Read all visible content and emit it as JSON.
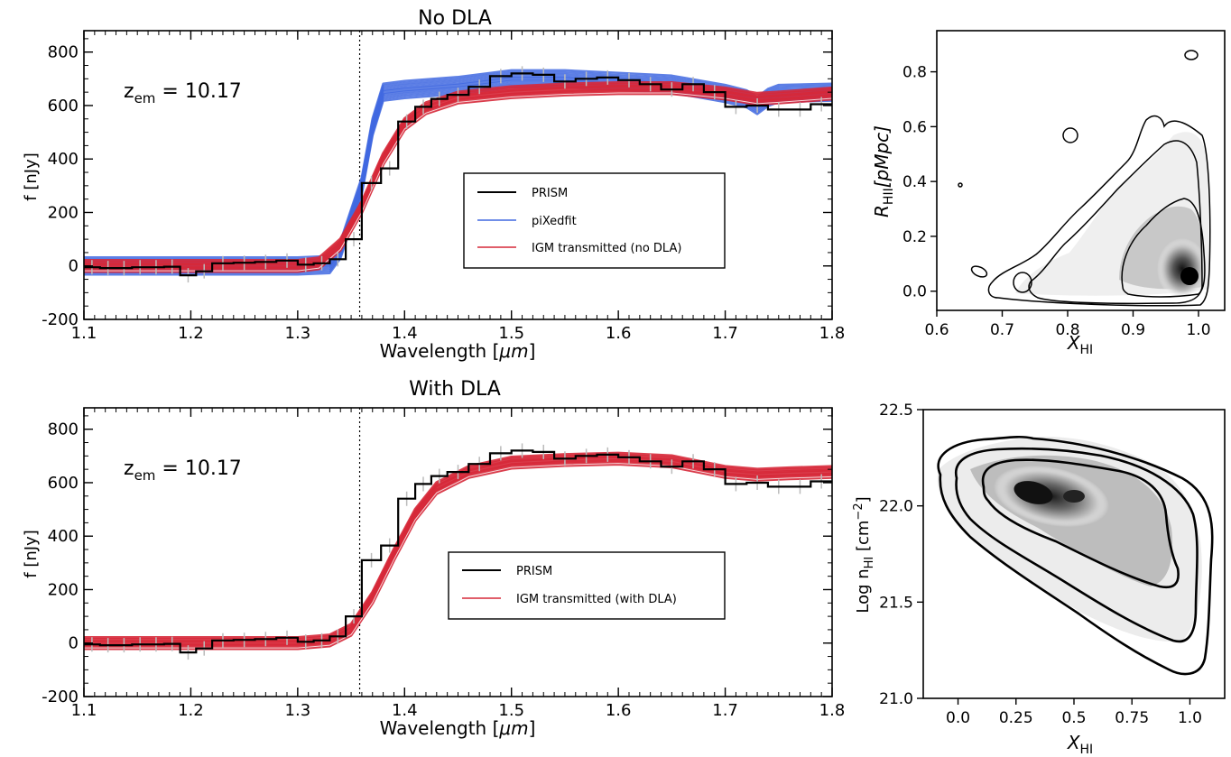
{
  "chart_data": [
    {
      "type": "line",
      "title": "No DLA",
      "annotation": {
        "text": "z",
        "sub": "em",
        "rest": " = 10.17"
      },
      "xlabel": "Wavelength [",
      "xlabel_unit": "μm",
      "xlabel_end": "]",
      "ylabel": "f [nJy]",
      "xlim": [
        1.1,
        1.8
      ],
      "ylim": [
        -200,
        880
      ],
      "xticks": [
        1.1,
        1.2,
        1.3,
        1.4,
        1.5,
        1.6,
        1.7,
        1.8
      ],
      "xtick_labels": [
        "1.1",
        "1.2",
        "1.3",
        "1.4",
        "1.5",
        "1.6",
        "1.7",
        "1.8"
      ],
      "yticks": [
        -200,
        0,
        200,
        400,
        600,
        800
      ],
      "ytick_labels": [
        "-200",
        "0",
        "200",
        "400",
        "600",
        "800"
      ],
      "vline_x": 1.358,
      "legend": [
        "PRISM",
        "piXedfit",
        "IGM transmitted (no DLA)"
      ],
      "colors": {
        "prism": "#000000",
        "model": "#4169e1",
        "igm": "#d62839"
      },
      "prism_steps": [
        [
          1.1,
          -5
        ],
        [
          1.115,
          -8
        ],
        [
          1.13,
          -8
        ],
        [
          1.145,
          -5
        ],
        [
          1.16,
          -5
        ],
        [
          1.175,
          -3
        ],
        [
          1.19,
          -35
        ],
        [
          1.205,
          -20
        ],
        [
          1.22,
          10
        ],
        [
          1.24,
          12
        ],
        [
          1.26,
          15
        ],
        [
          1.28,
          20
        ],
        [
          1.3,
          5
        ],
        [
          1.315,
          10
        ],
        [
          1.33,
          25
        ],
        [
          1.345,
          100
        ],
        [
          1.36,
          310
        ],
        [
          1.378,
          365
        ],
        [
          1.394,
          540
        ],
        [
          1.41,
          595
        ],
        [
          1.425,
          625
        ],
        [
          1.44,
          640
        ],
        [
          1.46,
          670
        ],
        [
          1.48,
          710
        ],
        [
          1.5,
          720
        ],
        [
          1.52,
          715
        ],
        [
          1.54,
          690
        ],
        [
          1.56,
          700
        ],
        [
          1.58,
          705
        ],
        [
          1.6,
          695
        ],
        [
          1.62,
          680
        ],
        [
          1.64,
          660
        ],
        [
          1.66,
          680
        ],
        [
          1.68,
          650
        ],
        [
          1.7,
          595
        ],
        [
          1.72,
          600
        ],
        [
          1.74,
          585
        ],
        [
          1.76,
          585
        ],
        [
          1.78,
          605
        ],
        [
          1.8,
          605
        ]
      ],
      "model_curve": [
        [
          1.1,
          0
        ],
        [
          1.3,
          0
        ],
        [
          1.33,
          5
        ],
        [
          1.34,
          60
        ],
        [
          1.36,
          300
        ],
        [
          1.37,
          520
        ],
        [
          1.38,
          650
        ],
        [
          1.4,
          660
        ],
        [
          1.45,
          675
        ],
        [
          1.5,
          700
        ],
        [
          1.55,
          700
        ],
        [
          1.6,
          690
        ],
        [
          1.65,
          680
        ],
        [
          1.7,
          645
        ],
        [
          1.72,
          625
        ],
        [
          1.73,
          600
        ],
        [
          1.74,
          630
        ],
        [
          1.75,
          645
        ],
        [
          1.8,
          650
        ]
      ],
      "igm_curve": [
        [
          1.1,
          0
        ],
        [
          1.3,
          0
        ],
        [
          1.32,
          10
        ],
        [
          1.34,
          80
        ],
        [
          1.36,
          220
        ],
        [
          1.38,
          400
        ],
        [
          1.4,
          530
        ],
        [
          1.42,
          590
        ],
        [
          1.45,
          630
        ],
        [
          1.5,
          650
        ],
        [
          1.55,
          660
        ],
        [
          1.6,
          665
        ],
        [
          1.65,
          665
        ],
        [
          1.7,
          645
        ],
        [
          1.73,
          625
        ],
        [
          1.75,
          630
        ],
        [
          1.8,
          645
        ]
      ]
    },
    {
      "type": "contour",
      "xlabel_main": "X",
      "xlabel_sub": "HI",
      "ylabel_main": "R",
      "ylabel_sub": "HII",
      "ylabel_rest": "[pMpc]",
      "xlim": [
        0.6,
        1.04
      ],
      "ylim": [
        -0.07,
        0.95
      ],
      "xticks": [
        0.6,
        0.7,
        0.8,
        0.9,
        1.0
      ],
      "xtick_labels": [
        "0.6",
        "0.7",
        "0.8",
        "0.9",
        "1.0"
      ],
      "yticks": [
        0.0,
        0.2,
        0.4,
        0.6,
        0.8
      ],
      "ytick_labels": [
        "0.0",
        "0.2",
        "0.4",
        "0.6",
        "0.8"
      ]
    },
    {
      "type": "line",
      "title": "With DLA",
      "annotation": {
        "text": "z",
        "sub": "em",
        "rest": " = 10.17"
      },
      "xlabel": "Wavelength [",
      "xlabel_unit": "μm",
      "xlabel_end": "]",
      "ylabel": "f [nJy]",
      "xlim": [
        1.1,
        1.8
      ],
      "ylim": [
        -200,
        880
      ],
      "xticks": [
        1.1,
        1.2,
        1.3,
        1.4,
        1.5,
        1.6,
        1.7,
        1.8
      ],
      "xtick_labels": [
        "1.1",
        "1.2",
        "1.3",
        "1.4",
        "1.5",
        "1.6",
        "1.7",
        "1.8"
      ],
      "yticks": [
        -200,
        0,
        200,
        400,
        600,
        800
      ],
      "ytick_labels": [
        "-200",
        "0",
        "200",
        "400",
        "600",
        "800"
      ],
      "vline_x": 1.358,
      "legend": [
        "PRISM",
        "IGM transmitted (with DLA)"
      ],
      "colors": {
        "prism": "#000000",
        "igm": "#d62839"
      },
      "prism_steps": [
        [
          1.1,
          -5
        ],
        [
          1.115,
          -8
        ],
        [
          1.13,
          -8
        ],
        [
          1.145,
          -5
        ],
        [
          1.16,
          -5
        ],
        [
          1.175,
          -3
        ],
        [
          1.19,
          -35
        ],
        [
          1.205,
          -20
        ],
        [
          1.22,
          10
        ],
        [
          1.24,
          12
        ],
        [
          1.26,
          15
        ],
        [
          1.28,
          20
        ],
        [
          1.3,
          5
        ],
        [
          1.315,
          10
        ],
        [
          1.33,
          25
        ],
        [
          1.345,
          100
        ],
        [
          1.36,
          310
        ],
        [
          1.378,
          365
        ],
        [
          1.394,
          540
        ],
        [
          1.41,
          595
        ],
        [
          1.425,
          625
        ],
        [
          1.44,
          640
        ],
        [
          1.46,
          670
        ],
        [
          1.48,
          710
        ],
        [
          1.5,
          720
        ],
        [
          1.52,
          715
        ],
        [
          1.54,
          690
        ],
        [
          1.56,
          700
        ],
        [
          1.58,
          705
        ],
        [
          1.6,
          695
        ],
        [
          1.62,
          680
        ],
        [
          1.64,
          660
        ],
        [
          1.66,
          680
        ],
        [
          1.68,
          650
        ],
        [
          1.7,
          595
        ],
        [
          1.72,
          600
        ],
        [
          1.74,
          585
        ],
        [
          1.76,
          585
        ],
        [
          1.78,
          605
        ],
        [
          1.8,
          605
        ]
      ],
      "igm_curve": [
        [
          1.1,
          0
        ],
        [
          1.3,
          0
        ],
        [
          1.33,
          10
        ],
        [
          1.35,
          50
        ],
        [
          1.37,
          170
        ],
        [
          1.39,
          330
        ],
        [
          1.41,
          480
        ],
        [
          1.43,
          580
        ],
        [
          1.46,
          640
        ],
        [
          1.5,
          675
        ],
        [
          1.55,
          685
        ],
        [
          1.6,
          690
        ],
        [
          1.65,
          680
        ],
        [
          1.7,
          640
        ],
        [
          1.73,
          630
        ],
        [
          1.76,
          635
        ],
        [
          1.8,
          640
        ]
      ]
    },
    {
      "type": "contour",
      "xlabel_main": "X",
      "xlabel_sub": "HI",
      "ylabel_main": "Log n",
      "ylabel_sub": "HI",
      "ylabel_rest": " [cm",
      "ylabel_sup": "−2",
      "ylabel_end": "]",
      "xlim": [
        -0.15,
        1.15
      ],
      "ylim": [
        21.0,
        22.5
      ],
      "xticks": [
        0.0,
        0.25,
        0.5,
        0.75,
        1.0
      ],
      "xtick_labels": [
        "0.0",
        "0.25",
        "0.5",
        "0.75",
        "1.0"
      ],
      "yticks": [
        21.0,
        21.5,
        22.0,
        22.5
      ],
      "ytick_labels": [
        "21.0",
        "21.5",
        "22.0",
        "22.5"
      ]
    }
  ]
}
